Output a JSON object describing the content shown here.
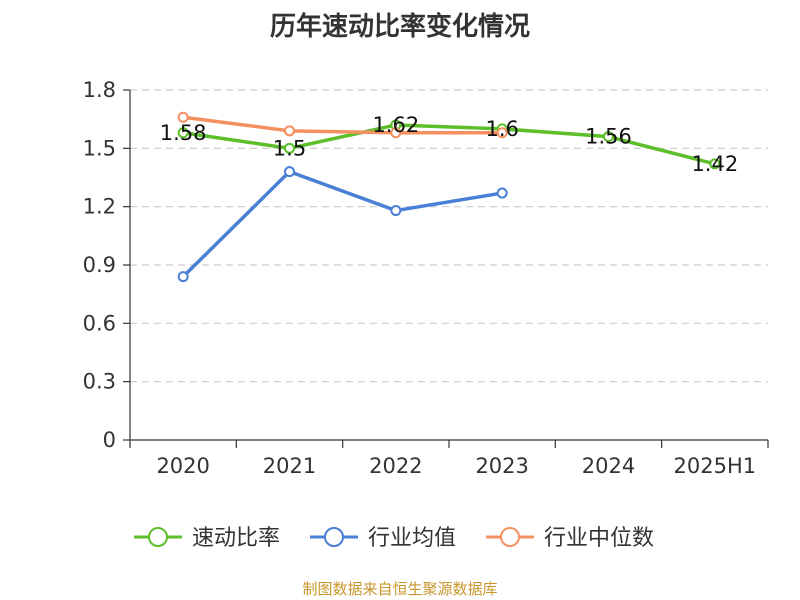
{
  "title": "历年速动比率变化情况",
  "source": "制图数据来自恒生聚源数据库",
  "chart_data": {
    "type": "line",
    "title": "历年速动比率变化情况",
    "categories": [
      "2020",
      "2021",
      "2022",
      "2023",
      "2024",
      "2025H1"
    ],
    "ylim": [
      0,
      1.8
    ],
    "yticks": [
      "0",
      "0.3",
      "0.6",
      "0.9",
      "1.2",
      "1.5",
      "1.8"
    ],
    "grid": true,
    "legend_position": "bottom",
    "series": [
      {
        "name": "速动比率",
        "color": "#5cbf2a",
        "values": [
          1.58,
          1.5,
          1.62,
          1.6,
          1.56,
          1.42
        ],
        "labels": [
          "1.58",
          "1.5",
          "1.62",
          "1.6",
          "1.56",
          "1.42"
        ]
      },
      {
        "name": "行业均值",
        "color": "#4a7fd6",
        "values": [
          0.84,
          1.38,
          1.18,
          1.27,
          null,
          null
        ]
      },
      {
        "name": "行业中位数",
        "color": "#f59061",
        "values": [
          1.66,
          1.59,
          1.58,
          1.58,
          null,
          null
        ]
      }
    ]
  }
}
